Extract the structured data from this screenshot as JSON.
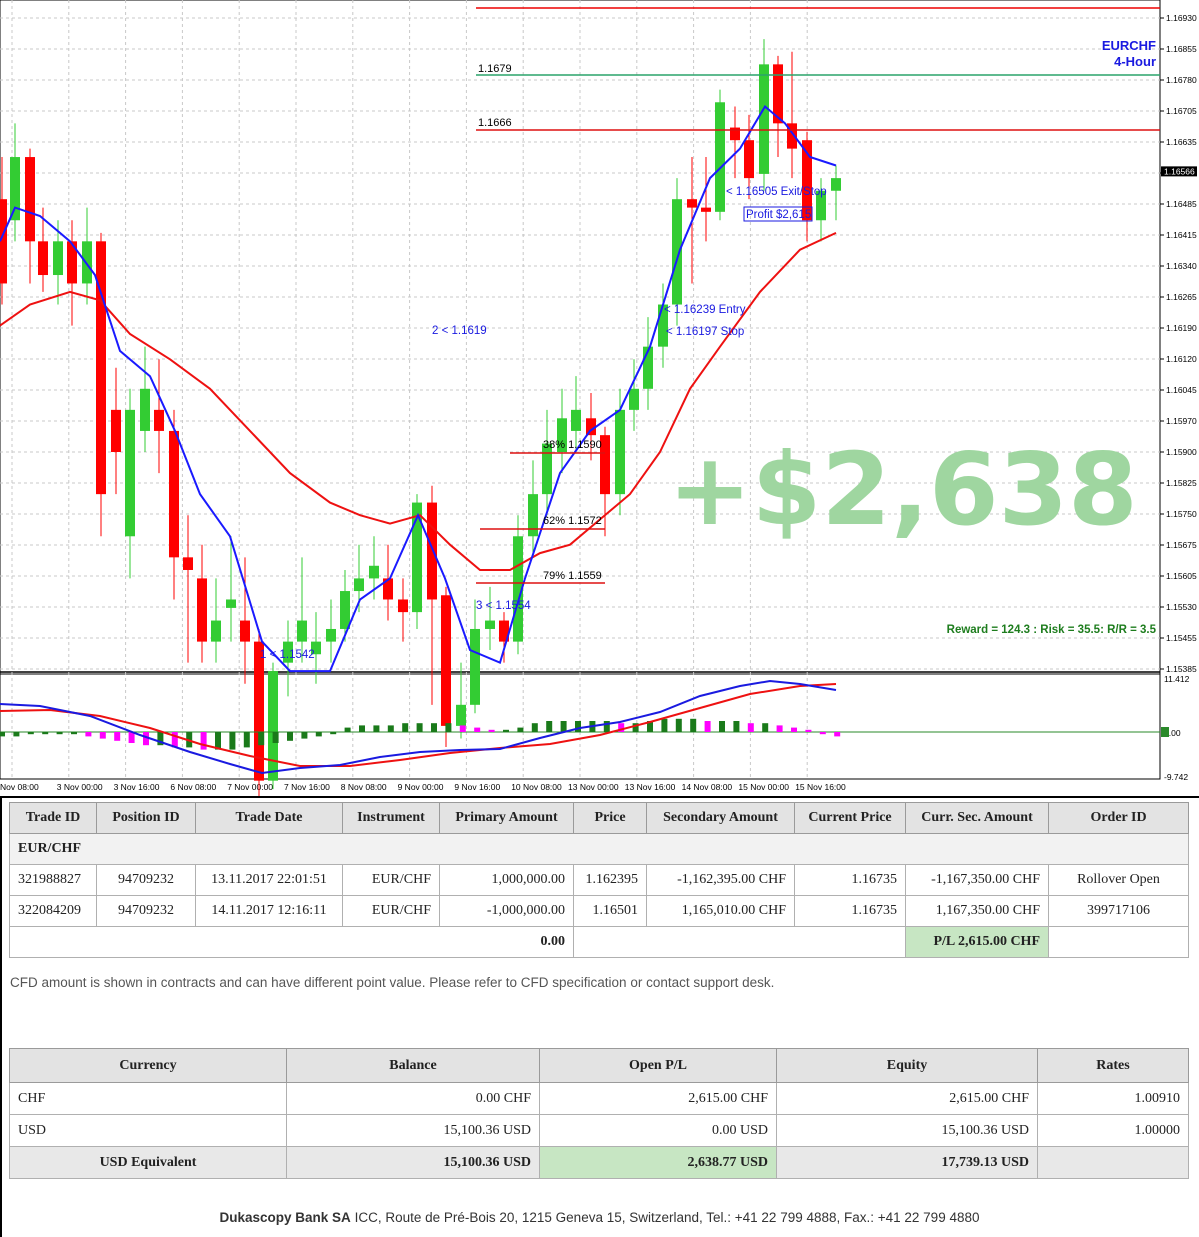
{
  "chart": {
    "symbol": "EURCHF",
    "timeframe": "4-Hour",
    "profit_overlay": "+$2,638",
    "reward_risk": "Reward = 124.3 : Risk = 35.5: R/R = 3.5",
    "price_axis": [
      "1.16930",
      "1.16855",
      "1.16780",
      "1.16705",
      "1.16635",
      "1.16566",
      "1.16485",
      "1.16415",
      "1.16340",
      "1.16265",
      "1.16190",
      "1.16120",
      "1.16045",
      "1.15970",
      "1.15900",
      "1.15825",
      "1.15750",
      "1.15675",
      "1.15605",
      "1.15530",
      "1.15455",
      "1.15385"
    ],
    "current_price": "1.16566",
    "osc_axis": [
      "11.412",
      "0.00",
      "-9.742"
    ],
    "time_axis": [
      "Nov 08:00",
      "3 Nov 00:00",
      "3 Nov 16:00",
      "6 Nov 08:00",
      "7 Nov 00:00",
      "7 Nov 16:00",
      "8 Nov 08:00",
      "9 Nov 00:00",
      "9 Nov 16:00",
      "10 Nov 08:00",
      "13 Nov 00:00",
      "13 Nov 16:00",
      "14 Nov 08:00",
      "15 Nov 00:00",
      "15 Nov 16:00"
    ],
    "level_1679": "1.1679",
    "level_1666": "1.1666",
    "fib_38": "38% 1.1590",
    "fib_62": "62% 1.1572",
    "fib_79": "79% 1.1559",
    "swing_1": "1 < 1.1542",
    "swing_2": "2 < 1.1619",
    "swing_3": "3 < 1.1554",
    "entry": "< 1.16239 Entry",
    "stop": "< 1.16197 Stop",
    "exit": "< 1.16505 Exit/Stop",
    "profit_label": "Profit $2,615",
    "colors": {
      "bull": "#33cc33",
      "bear": "#ff0000",
      "ma_fast": "#1a1aff",
      "ma_slow": "#ee1111",
      "overlay": "#9fd6a0"
    }
  },
  "trades": {
    "headers": [
      "Trade ID",
      "Position ID",
      "Trade Date",
      "Instrument",
      "Primary Amount",
      "Price",
      "Secondary Amount",
      "Current Price",
      "Curr. Sec. Amount",
      "Order ID"
    ],
    "group": "EUR/CHF",
    "rows": [
      [
        "321988827",
        "94709232",
        "13.11.2017 22:01:51",
        "EUR/CHF",
        "1,000,000.00",
        "1.162395",
        "-1,162,395.00 CHF",
        "1.16735",
        "-1,167,350.00 CHF",
        "Rollover Open"
      ],
      [
        "322084209",
        "94709232",
        "14.11.2017 12:16:11",
        "EUR/CHF",
        "-1,000,000.00",
        "1.16501",
        "1,165,010.00 CHF",
        "1.16735",
        "1,167,350.00 CHF",
        "399717106"
      ]
    ],
    "total_primary": "0.00",
    "pl": "P/L 2,615.00 CHF"
  },
  "cfd_note": "CFD amount is shown in contracts and can have different point value. Please refer to CFD specification or contact support desk.",
  "balances": {
    "headers": [
      "Currency",
      "Balance",
      "Open P/L",
      "Equity",
      "Rates"
    ],
    "rows": [
      [
        "CHF",
        "0.00 CHF",
        "2,615.00 CHF",
        "2,615.00 CHF",
        "1.00910"
      ],
      [
        "USD",
        "15,100.36 USD",
        "0.00 USD",
        "15,100.36 USD",
        "1.00000"
      ]
    ],
    "total": [
      "USD Equivalent",
      "15,100.36 USD",
      "2,638.77 USD",
      "17,739.13 USD",
      ""
    ]
  },
  "footer": {
    "company": "Dukascopy Bank SA",
    "address": " ICC, Route de Pré-Bois 20, 1215 Geneva 15, Switzerland, Tel.: +41 22 799 4888, Fax.: +41 22 799 4880"
  }
}
